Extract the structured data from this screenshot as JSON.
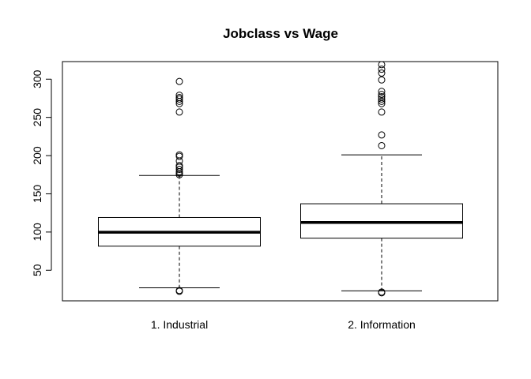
{
  "chart_data": {
    "type": "boxplot",
    "title": "Jobclass vs Wage",
    "xlabel": "",
    "ylabel": "",
    "ylim": [
      10,
      323
    ],
    "yticks": [
      50,
      100,
      150,
      200,
      250,
      300
    ],
    "categories": [
      "1. Industrial",
      "2. Information"
    ],
    "boxes": [
      {
        "name": "1. Industrial",
        "whisker_low": 27,
        "q1": 81.5,
        "median": 99.7,
        "q3": 119,
        "whisker_high": 174,
        "outliers": [
          22.5,
          23.5,
          175,
          177,
          179,
          182,
          185,
          187,
          193,
          199,
          201,
          257,
          268,
          271,
          274,
          276,
          279,
          297
        ]
      },
      {
        "name": "2. Information",
        "whisker_low": 23,
        "q1": 92,
        "median": 112.5,
        "q3": 137,
        "whisker_high": 201,
        "outliers": [
          20.5,
          21.5,
          213,
          227,
          257,
          268,
          271,
          274,
          277,
          280,
          284,
          299,
          308,
          313,
          319
        ]
      }
    ]
  }
}
